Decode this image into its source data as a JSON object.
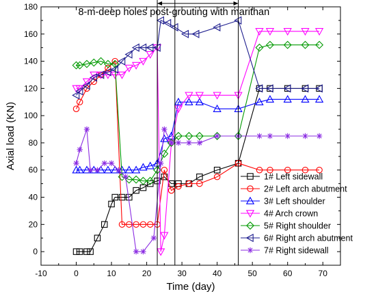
{
  "chart_data": {
    "type": "line",
    "title": "",
    "xlabel": "Time (day)",
    "ylabel": "Axial load (KN)",
    "xlim": [
      -10,
      75
    ],
    "ylim": [
      -10,
      180
    ],
    "xticks": [
      -10,
      0,
      10,
      20,
      30,
      40,
      50,
      60,
      70
    ],
    "yticks": [
      0,
      20,
      40,
      60,
      80,
      100,
      120,
      140,
      160,
      180
    ],
    "grid": false,
    "legend_position": "bottom-right",
    "annotation": {
      "text": "8-m-deep holes post-grouting with marithan",
      "x_from": 23,
      "x_to": 46,
      "markers_x": [
        23,
        28,
        46
      ]
    },
    "series": [
      {
        "name": "1# Left sidewall",
        "color": "#000000",
        "marker": "square",
        "x": [
          0,
          1,
          3,
          4,
          6,
          8,
          10,
          11,
          13,
          15,
          17,
          19,
          21,
          23,
          25,
          27,
          29,
          32,
          35,
          40,
          46,
          52,
          55,
          60,
          65,
          69
        ],
        "y": [
          0,
          0,
          0,
          0,
          10,
          20,
          35,
          40,
          40,
          40,
          45,
          47,
          50,
          52,
          55,
          50,
          50,
          50,
          55,
          60,
          65,
          120,
          120,
          120,
          120,
          120
        ]
      },
      {
        "name": "2# Left arch abutment",
        "color": "#ff0000",
        "marker": "circle",
        "x": [
          0,
          1,
          3,
          5,
          7,
          9,
          11,
          13,
          15,
          17,
          19,
          21,
          23,
          25,
          27,
          29,
          32,
          35,
          40,
          46,
          52,
          55,
          60,
          65,
          69
        ],
        "y": [
          105,
          110,
          120,
          125,
          130,
          135,
          140,
          20,
          20,
          20,
          20,
          20,
          20,
          60,
          45,
          48,
          50,
          50,
          55,
          65,
          60,
          60,
          60,
          60,
          60
        ]
      },
      {
        "name": "3# Left shoulder",
        "color": "#0000ff",
        "marker": "triangle-up",
        "x": [
          0,
          1,
          3,
          5,
          7,
          9,
          11,
          13,
          15,
          17,
          19,
          21,
          23,
          25,
          27,
          29,
          32,
          35,
          40,
          46,
          52,
          55,
          60,
          65,
          69
        ],
        "y": [
          60,
          60,
          60,
          60,
          60,
          60,
          60,
          60,
          60,
          60,
          62,
          63,
          65,
          83,
          85,
          110,
          110,
          110,
          105,
          105,
          110,
          112,
          112,
          112,
          112
        ]
      },
      {
        "name": "4# Arch crown",
        "color": "#ff00ff",
        "marker": "triangle-down",
        "x": [
          0,
          1,
          3,
          5,
          7,
          9,
          11,
          13,
          15,
          17,
          19,
          21,
          23,
          24,
          25,
          27,
          29,
          32,
          35,
          40,
          46,
          52,
          55,
          60,
          65,
          69
        ],
        "y": [
          120,
          120,
          125,
          130,
          130,
          130,
          130,
          130,
          135,
          137,
          140,
          145,
          150,
          0,
          12,
          80,
          105,
          115,
          115,
          115,
          115,
          162,
          162,
          162,
          162,
          162
        ]
      },
      {
        "name": "5# Right shoulder",
        "color": "#009900",
        "marker": "diamond",
        "x": [
          0,
          1,
          3,
          5,
          7,
          9,
          11,
          13,
          15,
          17,
          19,
          21,
          23,
          25,
          27,
          29,
          32,
          35,
          40,
          46,
          52,
          55,
          60,
          65,
          69
        ],
        "y": [
          137,
          137,
          138,
          139,
          140,
          138,
          138,
          55,
          53,
          53,
          52,
          52,
          60,
          72,
          80,
          85,
          85,
          85,
          85,
          85,
          150,
          152,
          152,
          152,
          152
        ]
      },
      {
        "name": "6# Right arch abutment",
        "color": "#1a1a8c",
        "marker": "triangle-left",
        "x": [
          0,
          1,
          3,
          5,
          7,
          9,
          11,
          13,
          15,
          17,
          19,
          21,
          23,
          24,
          26,
          28,
          31,
          34,
          40,
          46,
          52,
          55,
          60,
          65,
          69
        ],
        "y": [
          115,
          118,
          122,
          128,
          130,
          132,
          134,
          140,
          145,
          150,
          150,
          150,
          150,
          170,
          168,
          165,
          160,
          160,
          165,
          170,
          120,
          120,
          120,
          120,
          120
        ]
      },
      {
        "name": "7# Right sidewall",
        "color": "#8a2be2",
        "marker": "star",
        "x": [
          0,
          1,
          3,
          4,
          6,
          8,
          10,
          12,
          14,
          17,
          19,
          22,
          24,
          25,
          27,
          29,
          32,
          35,
          40,
          46,
          52,
          55,
          60,
          65,
          69
        ],
        "y": [
          65,
          75,
          90,
          60,
          60,
          65,
          65,
          60,
          55,
          0,
          0,
          10,
          65,
          90,
          80,
          80,
          80,
          80,
          85,
          85,
          85,
          85,
          85,
          85,
          85
        ]
      }
    ]
  }
}
